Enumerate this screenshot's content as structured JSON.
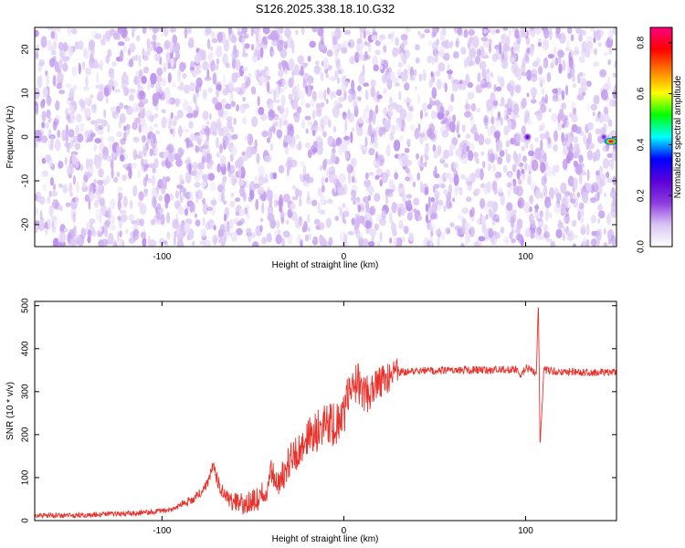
{
  "figure": {
    "title": "S126.2025.338.18.10.G32"
  },
  "chart_data": [
    {
      "type": "heatmap",
      "title": "S126.2025.338.18.10.G32",
      "xlabel": "Height of straight line (km)",
      "ylabel": "Frequency (Hz)",
      "xlim": [
        -170,
        150
      ],
      "ylim": [
        -25,
        25
      ],
      "x_ticks": [
        -100,
        0,
        100
      ],
      "y_ticks": [
        -20,
        -10,
        0,
        10,
        20
      ],
      "colorbar": {
        "label": "Normalized spectral amplitude",
        "range": [
          0,
          0.86
        ],
        "ticks": [
          0.0,
          0.2,
          0.4,
          0.6,
          0.8
        ],
        "colormap": [
          "#ffffff",
          "#d9c5f3",
          "#8c3ae0",
          "#5a00d8",
          "#0000ff",
          "#00ffff",
          "#00ff00",
          "#ffff00",
          "#ff8000",
          "#ff0000",
          "#ff0080"
        ]
      },
      "background_amplitude": [
        0.0,
        0.12
      ],
      "peaks": [
        {
          "x": 101,
          "y": 0,
          "value": 0.25
        },
        {
          "x": 143,
          "y": 0,
          "value": 0.2
        },
        {
          "x": 147,
          "y": -1,
          "value": 0.86
        }
      ]
    },
    {
      "type": "line",
      "xlabel": "Height of straight line (km)",
      "ylabel": "SNR (10 * v/v)",
      "xlim": [
        -170,
        150
      ],
      "ylim": [
        0,
        510
      ],
      "x_ticks": [
        -100,
        0,
        100
      ],
      "y_ticks": [
        0,
        100,
        200,
        300,
        400,
        500
      ],
      "series": [
        {
          "color": "#e8322c",
          "x": [
            -170,
            -150,
            -130,
            -110,
            -95,
            -85,
            -80,
            -75,
            -72,
            -68,
            -62,
            -55,
            -48,
            -43,
            -40,
            -36,
            -33,
            -28,
            -22,
            -18,
            -14,
            -10,
            -6,
            -3,
            0,
            3,
            5,
            8,
            11,
            14,
            17,
            20,
            25,
            30,
            40,
            60,
            80,
            95,
            97,
            100,
            103,
            106,
            107,
            108,
            110,
            115,
            130,
            150
          ],
          "y": [
            12,
            12,
            15,
            18,
            25,
            45,
            60,
            85,
            130,
            75,
            45,
            38,
            50,
            65,
            120,
            75,
            110,
            150,
            170,
            200,
            210,
            230,
            225,
            235,
            250,
            300,
            310,
            320,
            300,
            290,
            305,
            320,
            335,
            345,
            348,
            350,
            350,
            352,
            330,
            355,
            350,
            345,
            510,
            170,
            350,
            348,
            345,
            345
          ]
        }
      ]
    }
  ]
}
